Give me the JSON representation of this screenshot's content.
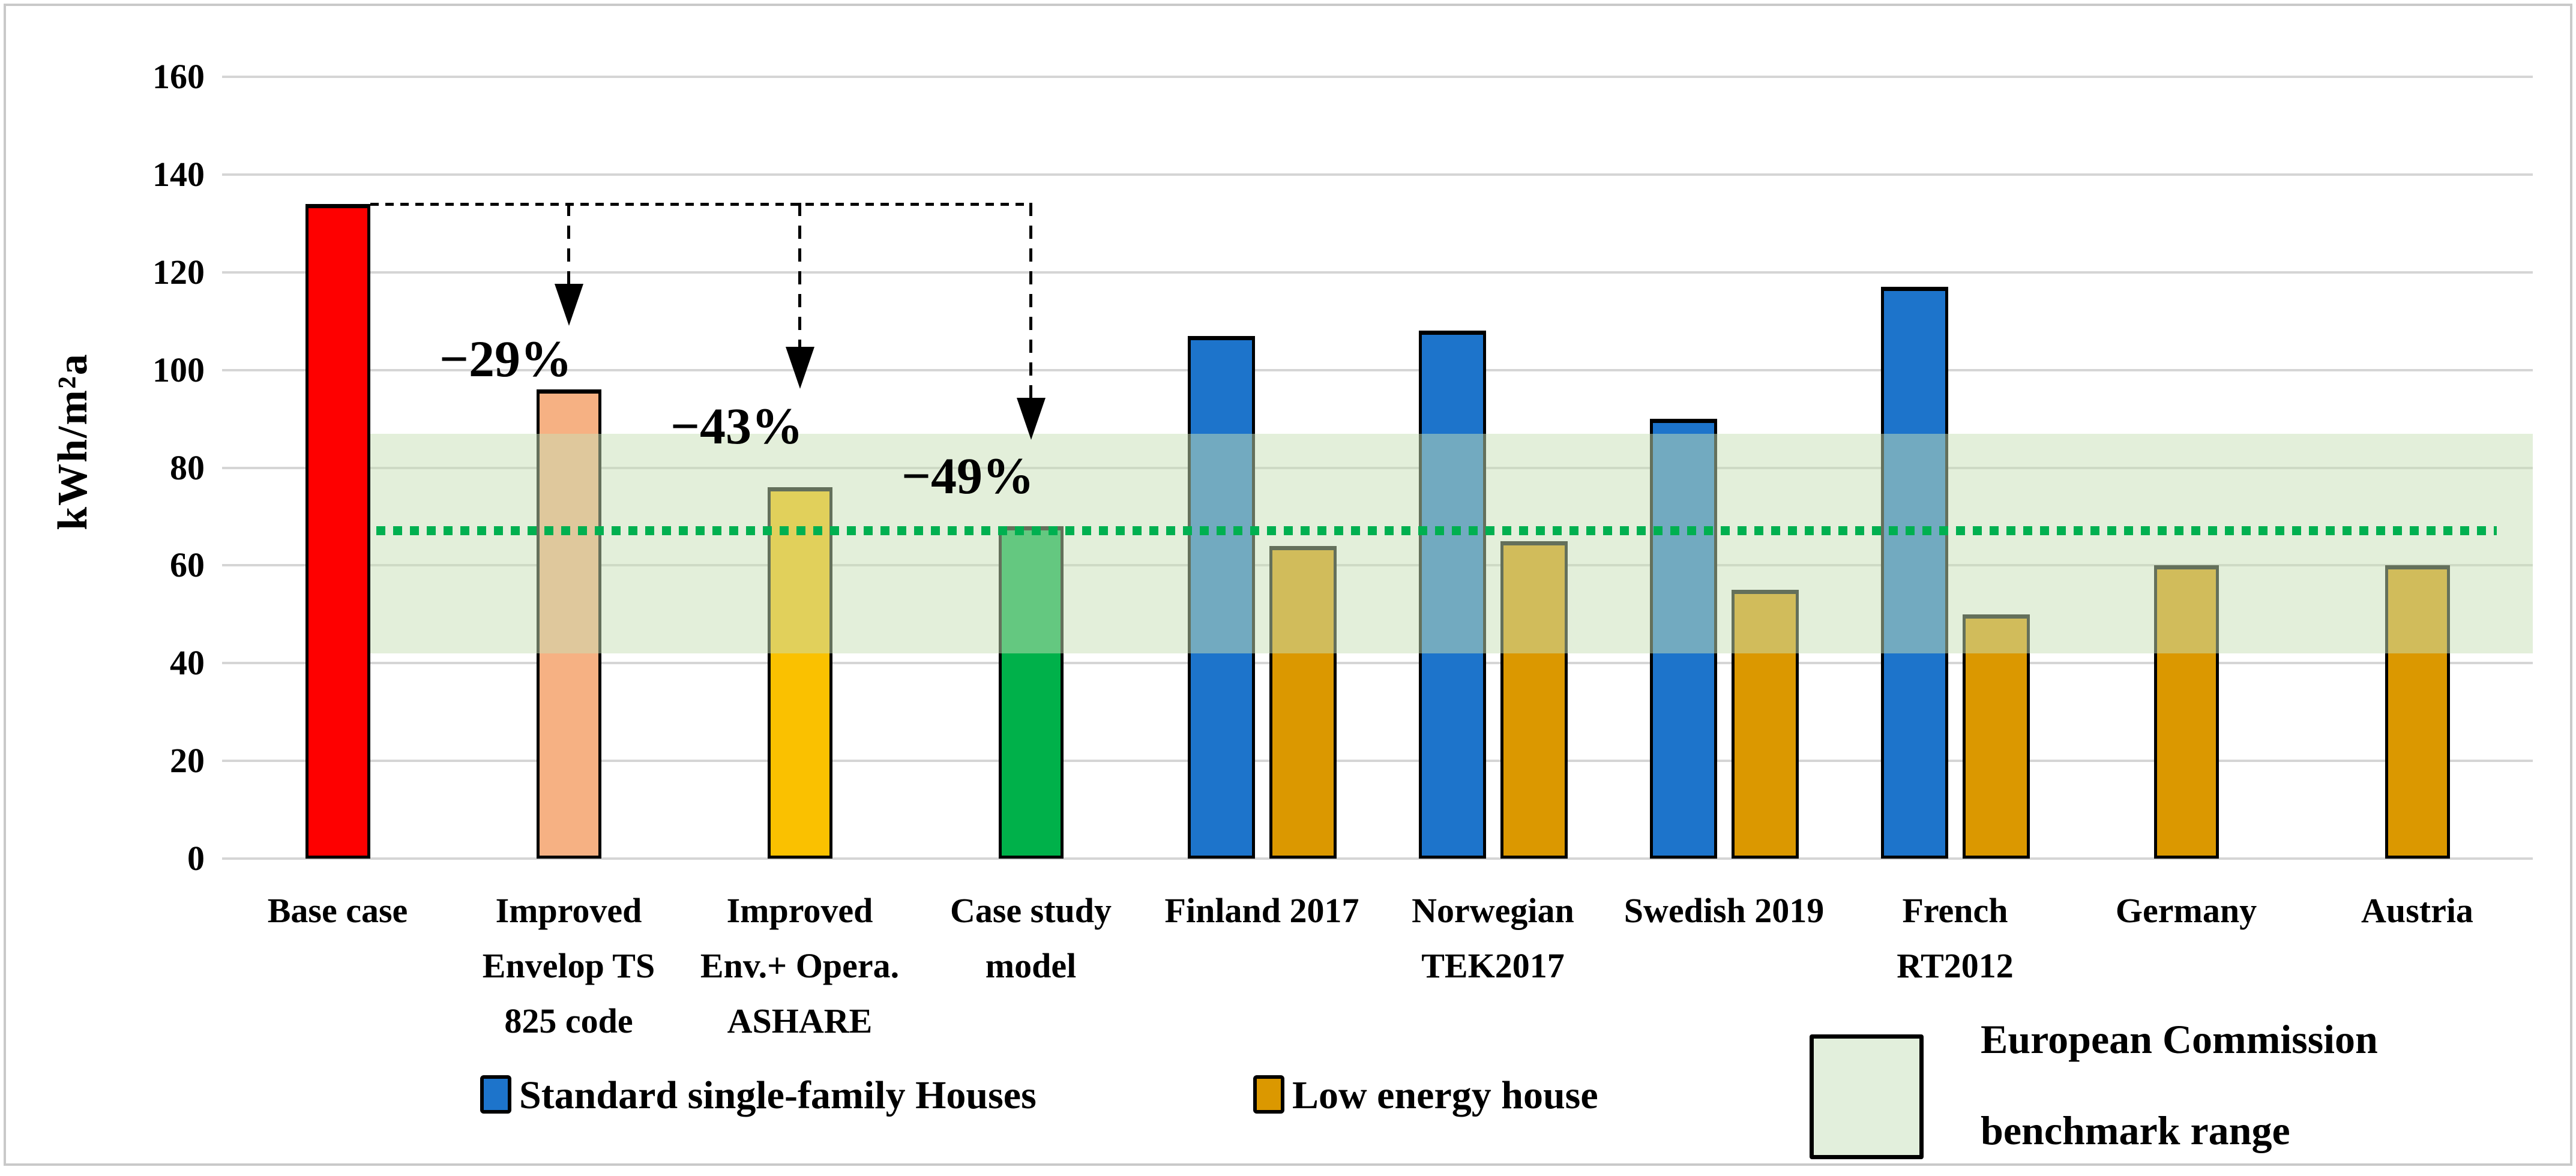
{
  "figure": {
    "background": "#FFFFFF",
    "border_color": "#C9C9C9"
  },
  "chart_data": {
    "type": "bar",
    "title": "",
    "xlabel": "",
    "ylabel": "kWh/m²a",
    "ylim": [
      0,
      160
    ],
    "yticks": [
      160,
      140,
      120,
      100,
      80,
      60,
      40,
      20,
      0
    ],
    "grid": true,
    "gridline_color": "#D5D5D5",
    "categories": [
      "Base case",
      "Improved Envelop TS 825 code",
      "Improved Env.+ Opera. ASHARE",
      "Case study model",
      "Finland 2017",
      "Norwegian TEK2017",
      "Swedish 2019",
      "French RT2012",
      "Germany",
      "Austria"
    ],
    "category_label_lines": [
      [
        "Base case"
      ],
      [
        "Improved",
        "Envelop TS",
        "825 code"
      ],
      [
        "Improved",
        "Env.+ Opera.",
        "ASHARE"
      ],
      [
        "Case study",
        "model"
      ],
      [
        "Finland 2017"
      ],
      [
        "Norwegian",
        "TEK2017"
      ],
      [
        "Swedish 2019"
      ],
      [
        "French",
        "RT2012"
      ],
      [
        "Germany"
      ],
      [
        "Austria"
      ]
    ],
    "series": [
      {
        "name": "Standard single-family Houses",
        "color": "#1D74CB",
        "values": [
          134,
          96,
          76,
          68,
          107,
          108,
          90,
          117,
          null,
          null
        ]
      },
      {
        "name": "Low energy house",
        "color": "#DB9800",
        "values": [
          null,
          null,
          null,
          null,
          64,
          65,
          55,
          50,
          60,
          60
        ]
      }
    ],
    "bar_color_overrides": {
      "0": "#FE0000",
      "1": "#F6B183",
      "2": "#FAC100",
      "3": "#00B14A"
    },
    "reduction_annotations": [
      {
        "text": "−29%",
        "category_index": 1
      },
      {
        "text": "−43%",
        "category_index": 2
      },
      {
        "text": "−49%",
        "category_index": 3
      }
    ],
    "benchmark_band": {
      "from": 42,
      "to": 87,
      "fill": "#E2EFDC",
      "label": "European Commission benchmark range"
    },
    "reference_line": {
      "value": 67,
      "color": "#00B050",
      "style": "dotted"
    }
  },
  "legend": {
    "standard_label": "Standard single-family Houses",
    "standard_color": "#1D74CB",
    "low_energy_label": "Low energy house",
    "low_energy_color": "#DB9800",
    "benchmark_label_line1": "European Commission",
    "benchmark_label_line2": "benchmark range",
    "benchmark_fill": "#E2EFDC"
  }
}
